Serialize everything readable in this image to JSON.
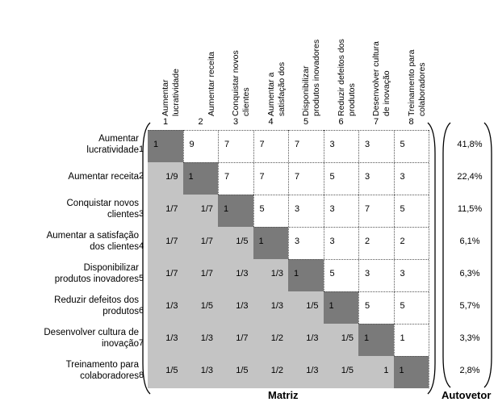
{
  "criteria": [
    {
      "num": "1",
      "header": "Aumentar\nlucratividade",
      "row_label": "Aumentar\nlucratividade"
    },
    {
      "num": "2",
      "header": "Aumentar receita",
      "row_label": "Aumentar receita"
    },
    {
      "num": "3",
      "header": "Conquistar novos\nclientes",
      "row_label": "Conquistar novos\nclientes"
    },
    {
      "num": "4",
      "header": "Aumentar a\nsatisfação dos",
      "row_label": "Aumentar a satisfação\ndos clientes"
    },
    {
      "num": "5",
      "header": "Disponibilizar\nprodutos inovadores",
      "row_label": "Disponibilizar\nprodutos inovadores"
    },
    {
      "num": "6",
      "header": "Reduzir defeitos dos\nprodutos",
      "row_label": "Reduzir defeitos dos\nprodutos"
    },
    {
      "num": "7",
      "header": "Desenvolver cultura\nde inovação",
      "row_label": "Desenvolver cultura de\ninovação"
    },
    {
      "num": "8",
      "header": "Treinamento para\ncolaboradores",
      "row_label": "Treinamento para\ncolaboradores"
    }
  ],
  "matrix": [
    [
      "1",
      "9",
      "7",
      "7",
      "7",
      "3",
      "3",
      "5"
    ],
    [
      "1/9",
      "1",
      "7",
      "7",
      "7",
      "5",
      "3",
      "3"
    ],
    [
      "1/7",
      "1/7",
      "1",
      "5",
      "3",
      "3",
      "7",
      "5"
    ],
    [
      "1/7",
      "1/7",
      "1/5",
      "1",
      "3",
      "3",
      "2",
      "2"
    ],
    [
      "1/7",
      "1/7",
      "1/3",
      "1/3",
      "1",
      "5",
      "3",
      "3"
    ],
    [
      "1/3",
      "1/5",
      "1/3",
      "1/3",
      "1/5",
      "1",
      "5",
      "5"
    ],
    [
      "1/3",
      "1/3",
      "1/7",
      "1/2",
      "1/3",
      "1/5",
      "1",
      "1"
    ],
    [
      "1/5",
      "1/3",
      "1/5",
      "1/2",
      "1/3",
      "1/5",
      "1",
      "1"
    ]
  ],
  "autovetor": [
    "41,8%",
    "22,4%",
    "11,5%",
    "6,1%",
    "6,3%",
    "5,7%",
    "3,3%",
    "2,8%"
  ],
  "footer": {
    "matrix_label": "Matriz",
    "vector_label": "Autovetor"
  },
  "colors": {
    "upper": "#ffffff",
    "lower": "#c4c4c4",
    "diagonal": "#7a7a7a"
  }
}
